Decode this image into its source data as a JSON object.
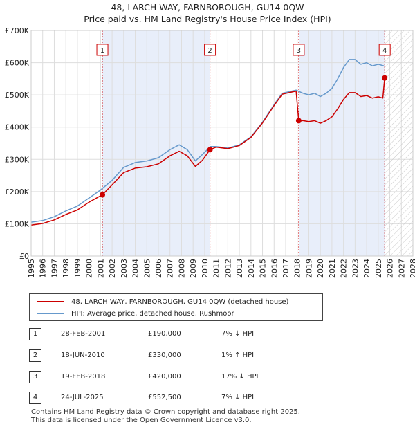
{
  "chart_data": {
    "type": "line",
    "title": "48, LARCH WAY, FARNBOROUGH, GU14 0QW",
    "subtitle": "Price paid vs. HM Land Registry's House Price Index (HPI)",
    "xlim": [
      1995,
      2028
    ],
    "ylim": [
      0,
      700000
    ],
    "y_ticks": [
      0,
      100000,
      200000,
      300000,
      400000,
      500000,
      600000,
      700000
    ],
    "y_tick_labels": [
      "£0",
      "£100K",
      "£200K",
      "£300K",
      "£400K",
      "£500K",
      "£600K",
      "£700K"
    ],
    "x_ticks": [
      1995,
      1996,
      1997,
      1998,
      1999,
      2000,
      2001,
      2002,
      2003,
      2004,
      2005,
      2006,
      2007,
      2008,
      2009,
      2010,
      2011,
      2012,
      2013,
      2014,
      2015,
      2016,
      2017,
      2018,
      2019,
      2020,
      2021,
      2022,
      2023,
      2024,
      2025,
      2026,
      2027,
      2028
    ],
    "grid": true,
    "future_hatch_from": 2025.6,
    "series": [
      {
        "name": "HPI: Average price, detached house, Rushmoor",
        "color": "#6699cc",
        "points": [
          [
            1995.0,
            105000
          ],
          [
            1996.0,
            110000
          ],
          [
            1997.0,
            122000
          ],
          [
            1998.0,
            140000
          ],
          [
            1999.0,
            155000
          ],
          [
            2000.0,
            180000
          ],
          [
            2001.0,
            205000
          ],
          [
            2002.0,
            235000
          ],
          [
            2003.0,
            275000
          ],
          [
            2004.0,
            290000
          ],
          [
            2005.0,
            295000
          ],
          [
            2006.0,
            305000
          ],
          [
            2007.0,
            330000
          ],
          [
            2007.8,
            345000
          ],
          [
            2008.5,
            330000
          ],
          [
            2009.2,
            295000
          ],
          [
            2009.8,
            315000
          ],
          [
            2010.5,
            340000
          ],
          [
            2011.0,
            340000
          ],
          [
            2012.0,
            335000
          ],
          [
            2013.0,
            345000
          ],
          [
            2014.0,
            370000
          ],
          [
            2015.0,
            415000
          ],
          [
            2016.0,
            470000
          ],
          [
            2016.7,
            505000
          ],
          [
            2017.3,
            510000
          ],
          [
            2017.9,
            515000
          ],
          [
            2018.5,
            505000
          ],
          [
            2019.0,
            500000
          ],
          [
            2019.5,
            505000
          ],
          [
            2020.0,
            495000
          ],
          [
            2020.5,
            505000
          ],
          [
            2021.0,
            520000
          ],
          [
            2021.5,
            550000
          ],
          [
            2022.0,
            585000
          ],
          [
            2022.5,
            610000
          ],
          [
            2023.0,
            610000
          ],
          [
            2023.5,
            595000
          ],
          [
            2024.0,
            600000
          ],
          [
            2024.5,
            590000
          ],
          [
            2025.0,
            595000
          ],
          [
            2025.5,
            590000
          ]
        ]
      },
      {
        "name": "48, LARCH WAY, FARNBOROUGH, GU14 0QW (detached house)",
        "color": "#cc0000",
        "points": [
          [
            1995.0,
            96000
          ],
          [
            1996.0,
            101000
          ],
          [
            1997.0,
            112000
          ],
          [
            1998.0,
            129000
          ],
          [
            1999.0,
            143000
          ],
          [
            2000.0,
            167000
          ],
          [
            2001.16,
            190000
          ],
          [
            2002.0,
            221000
          ],
          [
            2003.0,
            259000
          ],
          [
            2004.0,
            273000
          ],
          [
            2005.0,
            277000
          ],
          [
            2006.0,
            286000
          ],
          [
            2007.0,
            311000
          ],
          [
            2007.8,
            325000
          ],
          [
            2008.5,
            311000
          ],
          [
            2009.2,
            278000
          ],
          [
            2009.8,
            297000
          ],
          [
            2010.46,
            330000
          ],
          [
            2011.0,
            338000
          ],
          [
            2012.0,
            333000
          ],
          [
            2013.0,
            343000
          ],
          [
            2014.0,
            368000
          ],
          [
            2015.0,
            413000
          ],
          [
            2016.0,
            467000
          ],
          [
            2016.7,
            502000
          ],
          [
            2017.3,
            507000
          ],
          [
            2017.9,
            512000
          ],
          [
            2018.13,
            420000
          ],
          [
            2018.5,
            420000
          ],
          [
            2019.0,
            417000
          ],
          [
            2019.5,
            420000
          ],
          [
            2020.0,
            412000
          ],
          [
            2020.5,
            420000
          ],
          [
            2021.0,
            432000
          ],
          [
            2021.5,
            457000
          ],
          [
            2022.0,
            486000
          ],
          [
            2022.5,
            507000
          ],
          [
            2023.0,
            507000
          ],
          [
            2023.5,
            495000
          ],
          [
            2024.0,
            498000
          ],
          [
            2024.5,
            490000
          ],
          [
            2025.0,
            494000
          ],
          [
            2025.4,
            490000
          ],
          [
            2025.56,
            552500
          ]
        ]
      }
    ],
    "sales": [
      {
        "label": "1",
        "year": 2001.16,
        "price": 190000
      },
      {
        "label": "2",
        "year": 2010.46,
        "price": 330000
      },
      {
        "label": "3",
        "year": 2018.13,
        "price": 420000
      },
      {
        "label": "4",
        "year": 2025.56,
        "price": 552500
      }
    ],
    "marker_label_value": 640000
  },
  "legend": {
    "property": "48, LARCH WAY, FARNBOROUGH, GU14 0QW (detached house)",
    "hpi": "HPI: Average price, detached house, Rushmoor"
  },
  "transactions": [
    {
      "num": "1",
      "date": "28-FEB-2001",
      "price": "£190,000",
      "hpi": "7% ↓ HPI"
    },
    {
      "num": "2",
      "date": "18-JUN-2010",
      "price": "£330,000",
      "hpi": "1% ↑ HPI"
    },
    {
      "num": "3",
      "date": "19-FEB-2018",
      "price": "£420,000",
      "hpi": "17% ↓ HPI"
    },
    {
      "num": "4",
      "date": "24-JUL-2025",
      "price": "£552,500",
      "hpi": "7% ↓ HPI"
    }
  ],
  "footer": {
    "line1": "Contains HM Land Registry data © Crown copyright and database right 2025.",
    "line2": "This data is licensed under the Open Government Licence v3.0."
  },
  "colors": {
    "property": "#cc0000",
    "hpi": "#6699cc",
    "band": "#e8eefa"
  }
}
